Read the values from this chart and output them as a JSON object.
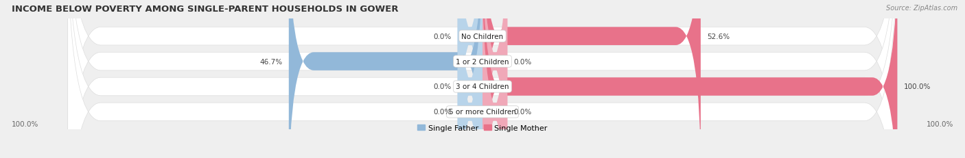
{
  "title": "INCOME BELOW POVERTY AMONG SINGLE-PARENT HOUSEHOLDS IN GOWER",
  "source": "Source: ZipAtlas.com",
  "categories": [
    "No Children",
    "1 or 2 Children",
    "3 or 4 Children",
    "5 or more Children"
  ],
  "father_values": [
    0.0,
    46.7,
    0.0,
    0.0
  ],
  "mother_values": [
    52.6,
    0.0,
    100.0,
    0.0
  ],
  "father_color": "#92b8d9",
  "mother_color": "#e8728a",
  "father_color_zero": "#b8d4ea",
  "mother_color_zero": "#f0a8b8",
  "father_label": "Single Father",
  "mother_label": "Single Mother",
  "bg_color": "#efefef",
  "bar_bg_color": "#ffffff",
  "bar_border_color": "#dddddd",
  "figsize": [
    14.06,
    2.32
  ],
  "dpi": 100,
  "title_fontsize": 9.5,
  "label_fontsize": 7.5,
  "value_fontsize": 7.5,
  "tick_fontsize": 7.5,
  "source_fontsize": 7,
  "legend_fontsize": 8
}
